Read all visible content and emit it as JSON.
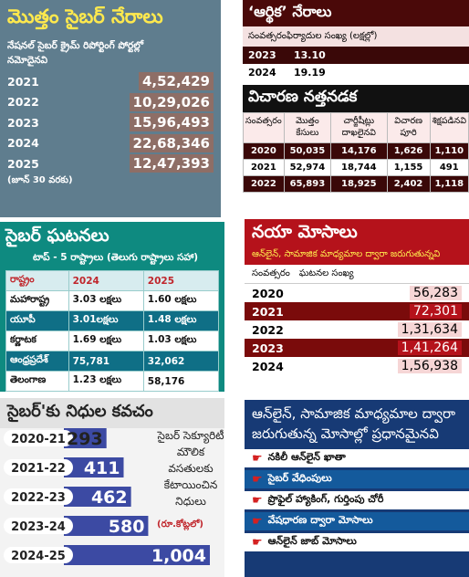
{
  "total_crimes": {
    "title": "మొత్తం సైబర్ నేరాలు",
    "subtitle": "నేషనల్ సైబర్ క్రైమ్ రిపోర్టింగ్ పోర్టల్లో నమోదైనవి",
    "rows": [
      [
        "2021",
        "4,52,429"
      ],
      [
        "2022",
        "10,29,026"
      ],
      [
        "2023",
        "15,96,493"
      ],
      [
        "2024",
        "22,68,346"
      ],
      [
        "2025",
        "12,47,393"
      ]
    ],
    "note": "(జూన్ 30 వరకు)"
  },
  "financial_crimes": {
    "title": "‘ఆర్థిక’ నేరాలు",
    "subtitle": "సంవత్సరంఫిర్యాదుల సంఖ్య (లక్షల్లో)",
    "rows": [
      [
        "2023",
        "13.10"
      ],
      [
        "2024",
        "19.19"
      ]
    ]
  },
  "slow_trials": {
    "title": "విచారణ నత్తనడక",
    "header": [
      "సంవత్సరం",
      "మొత్తం కేసులు",
      "చార్జీషీట్లు దాఖలైనవి",
      "విచారణ పూరి",
      "శిక్షపడినవి"
    ],
    "rows": [
      [
        "2020",
        "50,035",
        "14,176",
        "1,626",
        "1,110"
      ],
      [
        "2021",
        "52,974",
        "18,744",
        "1,155",
        "491"
      ],
      [
        "2022",
        "65,893",
        "18,925",
        "2,402",
        "1,118"
      ]
    ]
  },
  "cyber_incidents": {
    "title": "సైబర్ ఘటనలు",
    "subtitle": "టాప్ - 5 రాష్ట్రాలు (తెలుగు రాష్ట్రాలు సహా)",
    "header": [
      "రాష్ట్రం",
      "2024",
      "2025"
    ],
    "rows": [
      [
        "మహారాష్ట్ర",
        "3.03 లక్షలు",
        "1.60 లక్షలు"
      ],
      [
        "యూపీ",
        "3.01లక్షలు",
        "1.48 లక్షలు"
      ],
      [
        "కర్ణాటక",
        "1.69 లక్షలు",
        "1.03 లక్షలు"
      ],
      [
        "ఆంధ్రప్రదేశ్",
        "75,781",
        "32,062"
      ],
      [
        "తెలంగాణ",
        "1.23 లక్షలు",
        "58,176"
      ]
    ]
  },
  "new_frauds": {
    "title": "నయా మోసాలు",
    "subtitle": "ఆన్‌లైన్, సామాజిక మాధ్యమాల ద్వారా జరుగుతున్నవి",
    "header": [
      "సంవత్సరం",
      "ఘటనల సంఖ్య"
    ],
    "rows": [
      [
        "2020",
        "56,283"
      ],
      [
        "2021",
        "72,301"
      ],
      [
        "2022",
        "1,31,634"
      ],
      [
        "2023",
        "1,41,264"
      ],
      [
        "2024",
        "1,56,938"
      ]
    ]
  },
  "cyber_funds": {
    "title": "సైబర్‌'కు నిధుల కవచం",
    "years": [
      "2020-21",
      "2021-22",
      "2022-23",
      "2023-24",
      "2024-25"
    ],
    "values": [
      293,
      411,
      462,
      580,
      1004
    ],
    "value_labels": [
      "293",
      "411",
      "462",
      "580",
      "1,004"
    ],
    "description": "సైబర్ సెక్యూరిటీ మౌలిక వసతులకు కేటాయించిన నిధులు",
    "unit": "(రూ.కోట్లలో)"
  },
  "main_frauds": {
    "title": "ఆన్‌లైన్, సామాజిక మాధ్యమాల ద్వారా జరుగుతున్న మోసాల్లో ప్రధానమైనవి",
    "items": [
      "నకిలీ ఆన్‌లైన్ ఖాతా",
      "సైబర్ వేధింపులు",
      "ప్రొఫైల్ హ్యాకింగ్, గుర్తింపు చోరీ",
      "వేషధారణ ద్వారా మోసాలు",
      "ఆన్‌లైన్ జాబ్ మోసాలు"
    ]
  }
}
